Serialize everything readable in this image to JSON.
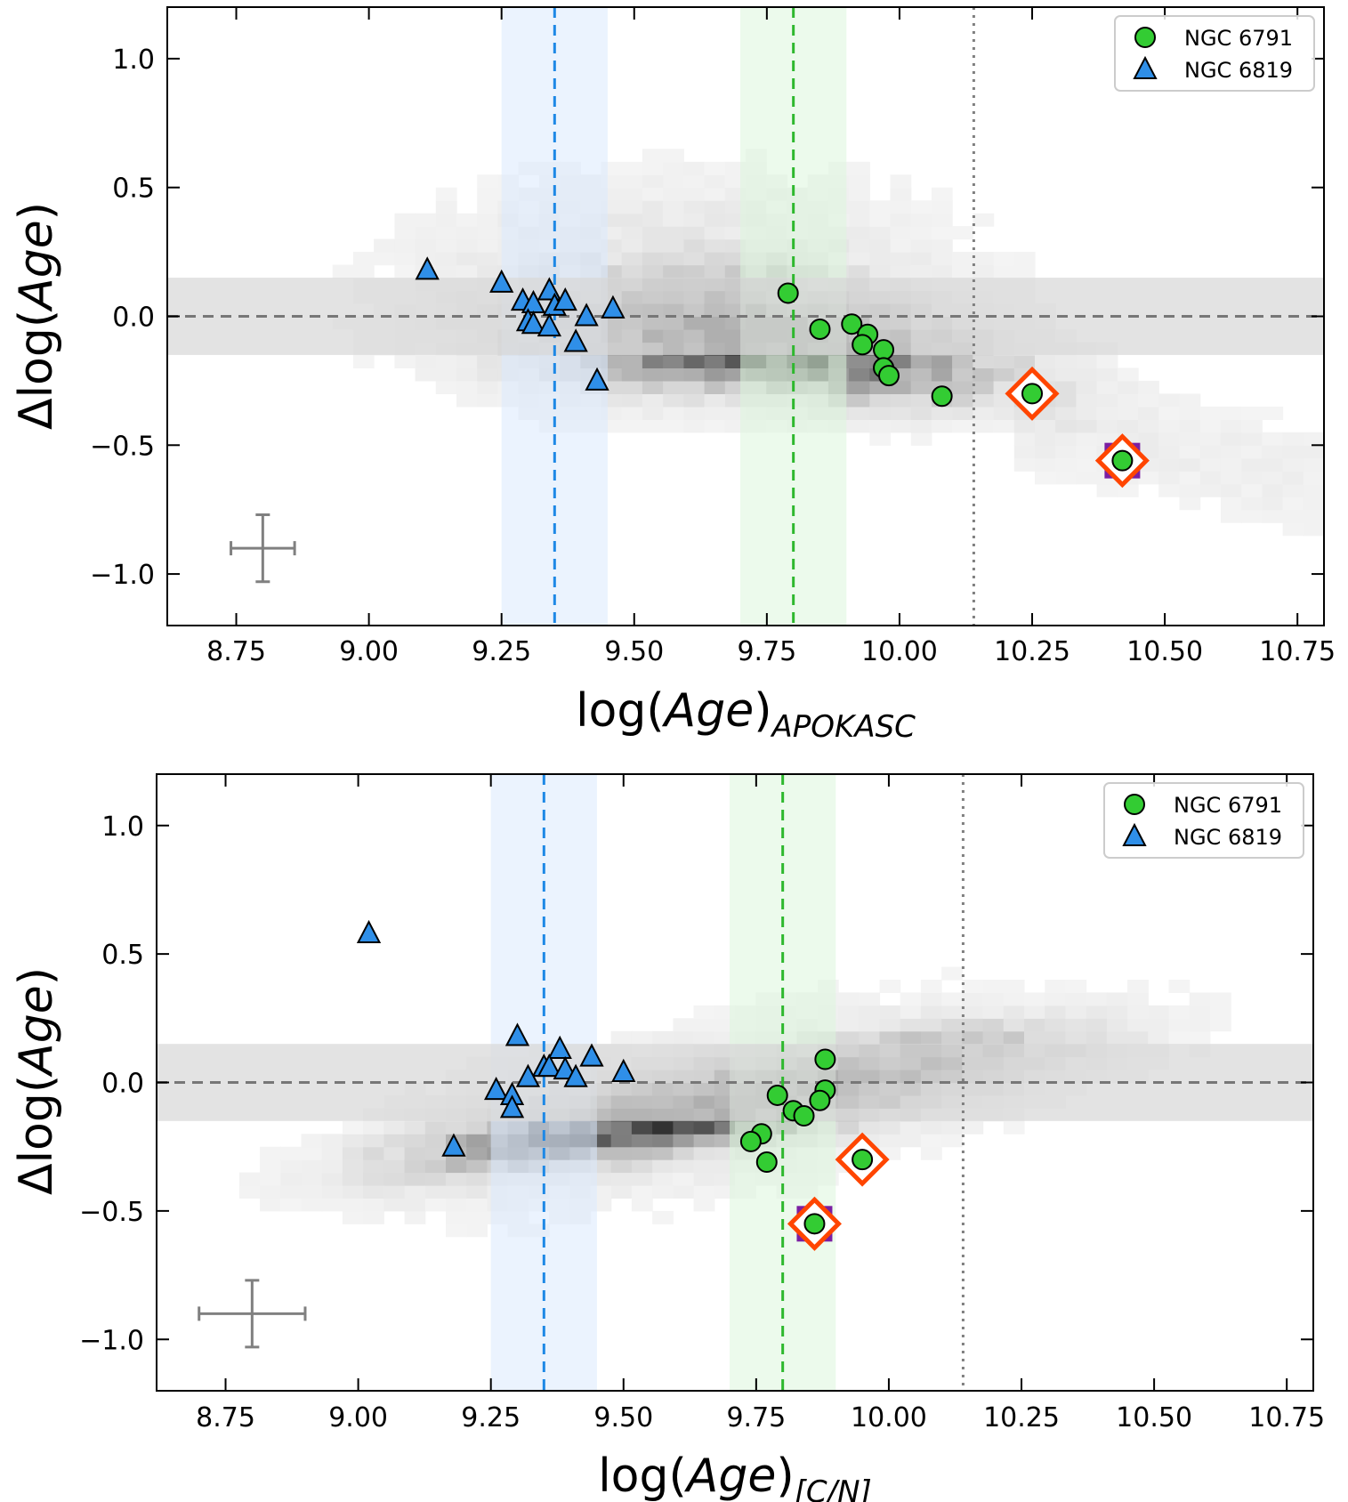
{
  "chart_data": [
    {
      "type": "scatter",
      "panel": "top",
      "xlabel": "log(Age)",
      "xlabel_sub": "APOKASC",
      "ylabel_prefix": "Δlog(",
      "ylabel_var": "Age",
      "ylabel_suffix": ")",
      "xlim": [
        8.62,
        10.8
      ],
      "ylim": [
        -1.2,
        1.2
      ],
      "xticks": [
        8.75,
        9.0,
        9.25,
        9.5,
        9.75,
        10.0,
        10.25,
        10.5,
        10.75
      ],
      "xtick_labels": [
        "8.75",
        "9.00",
        "9.25",
        "9.50",
        "9.75",
        "10.00",
        "10.25",
        "10.50",
        "10.75"
      ],
      "yticks": [
        -1.0,
        -0.5,
        0.0,
        0.5,
        1.0
      ],
      "ytick_labels": [
        "−1.0",
        "−0.5",
        "0.0",
        "0.5",
        "1.0"
      ],
      "legend_position": "top-right",
      "bands": [
        {
          "axis": "x",
          "range": [
            9.25,
            9.45
          ],
          "color": "#dbeafe"
        },
        {
          "axis": "x",
          "range": [
            9.7,
            9.9
          ],
          "color": "#dcf5dc"
        },
        {
          "axis": "y",
          "range": [
            -0.15,
            0.15
          ],
          "color": "#d9d9d9"
        }
      ],
      "reference_lines": [
        {
          "axis": "y",
          "value": 0.0,
          "style": "dashed",
          "color": "#777777"
        },
        {
          "axis": "x",
          "value": 9.35,
          "style": "dashed",
          "color": "#1e88e5"
        },
        {
          "axis": "x",
          "value": 9.8,
          "style": "dashed",
          "color": "#2eb82e"
        },
        {
          "axis": "x",
          "value": 10.14,
          "style": "dotted",
          "color": "#808080"
        }
      ],
      "error_bar": {
        "x": 8.8,
        "y": -0.9,
        "xerr": 0.06,
        "yerr": 0.13
      },
      "series": [
        {
          "name": "NGC 6791",
          "marker": "circle",
          "color": "#33cc33",
          "points": [
            [
              9.79,
              0.09
            ],
            [
              9.85,
              -0.05
            ],
            [
              9.91,
              -0.03
            ],
            [
              9.94,
              -0.07
            ],
            [
              9.93,
              -0.11
            ],
            [
              9.97,
              -0.13
            ],
            [
              9.97,
              -0.2
            ],
            [
              9.98,
              -0.23
            ],
            [
              10.08,
              -0.31
            ],
            [
              10.25,
              -0.3
            ],
            [
              10.42,
              -0.56
            ]
          ]
        },
        {
          "name": "NGC 6819",
          "marker": "triangle",
          "color": "#2f8fe8",
          "points": [
            [
              9.11,
              0.18
            ],
            [
              9.25,
              0.13
            ],
            [
              9.29,
              0.06
            ],
            [
              9.31,
              0.05
            ],
            [
              9.34,
              0.1
            ],
            [
              9.35,
              0.04
            ],
            [
              9.37,
              0.06
            ],
            [
              9.3,
              -0.02
            ],
            [
              9.31,
              -0.03
            ],
            [
              9.34,
              -0.04
            ],
            [
              9.41,
              0.0
            ],
            [
              9.39,
              -0.1
            ],
            [
              9.46,
              0.03
            ],
            [
              9.43,
              -0.25
            ]
          ]
        }
      ],
      "highlights": [
        {
          "x": 10.25,
          "y": -0.3,
          "marker": "diamond",
          "color": "#ff4500"
        },
        {
          "x": 10.42,
          "y": -0.56,
          "marker": "diamond",
          "color": "#ff4500"
        },
        {
          "x": 10.42,
          "y": -0.56,
          "marker": "square",
          "color": "#7b1fa2"
        }
      ]
    },
    {
      "type": "scatter",
      "panel": "bottom",
      "xlabel": "log(Age)",
      "xlabel_sub": "[C/N]",
      "ylabel_prefix": "Δlog(",
      "ylabel_var": "Age",
      "ylabel_suffix": ")",
      "xlim": [
        8.62,
        10.8
      ],
      "ylim": [
        -1.2,
        1.2
      ],
      "xticks": [
        8.75,
        9.0,
        9.25,
        9.5,
        9.75,
        10.0,
        10.25,
        10.5,
        10.75
      ],
      "xtick_labels": [
        "8.75",
        "9.00",
        "9.25",
        "9.50",
        "9.75",
        "10.00",
        "10.25",
        "10.50",
        "10.75"
      ],
      "yticks": [
        -1.0,
        -0.5,
        0.0,
        0.5,
        1.0
      ],
      "ytick_labels": [
        "−1.0",
        "−0.5",
        "0.0",
        "0.5",
        "1.0"
      ],
      "legend_position": "top-right",
      "bands": [
        {
          "axis": "x",
          "range": [
            9.25,
            9.45
          ],
          "color": "#dbeafe"
        },
        {
          "axis": "x",
          "range": [
            9.7,
            9.9
          ],
          "color": "#dcf5dc"
        },
        {
          "axis": "y",
          "range": [
            -0.15,
            0.15
          ],
          "color": "#d9d9d9"
        }
      ],
      "reference_lines": [
        {
          "axis": "y",
          "value": 0.0,
          "style": "dashed",
          "color": "#777777"
        },
        {
          "axis": "x",
          "value": 9.35,
          "style": "dashed",
          "color": "#1e88e5"
        },
        {
          "axis": "x",
          "value": 9.8,
          "style": "dashed",
          "color": "#2eb82e"
        },
        {
          "axis": "x",
          "value": 10.14,
          "style": "dotted",
          "color": "#808080"
        }
      ],
      "error_bar": {
        "x": 8.8,
        "y": -0.9,
        "xerr": 0.1,
        "yerr": 0.13
      },
      "series": [
        {
          "name": "NGC 6791",
          "marker": "circle",
          "color": "#33cc33",
          "points": [
            [
              9.88,
              0.09
            ],
            [
              9.79,
              -0.05
            ],
            [
              9.88,
              -0.03
            ],
            [
              9.87,
              -0.07
            ],
            [
              9.82,
              -0.11
            ],
            [
              9.84,
              -0.13
            ],
            [
              9.76,
              -0.2
            ],
            [
              9.74,
              -0.23
            ],
            [
              9.77,
              -0.31
            ],
            [
              9.95,
              -0.3
            ],
            [
              9.86,
              -0.55
            ]
          ]
        },
        {
          "name": "NGC 6819",
          "marker": "triangle",
          "color": "#2f8fe8",
          "points": [
            [
              9.02,
              0.58
            ],
            [
              9.3,
              0.18
            ],
            [
              9.38,
              0.13
            ],
            [
              9.44,
              0.1
            ],
            [
              9.35,
              0.06
            ],
            [
              9.36,
              0.06
            ],
            [
              9.39,
              0.05
            ],
            [
              9.41,
              0.02
            ],
            [
              9.5,
              0.04
            ],
            [
              9.32,
              0.02
            ],
            [
              9.26,
              -0.03
            ],
            [
              9.29,
              -0.05
            ],
            [
              9.29,
              -0.1
            ],
            [
              9.18,
              -0.25
            ]
          ]
        }
      ],
      "highlights": [
        {
          "x": 9.95,
          "y": -0.3,
          "marker": "diamond",
          "color": "#ff4500"
        },
        {
          "x": 9.86,
          "y": -0.55,
          "marker": "diamond",
          "color": "#ff4500"
        },
        {
          "x": 9.86,
          "y": -0.55,
          "marker": "square",
          "color": "#7b1fa2"
        }
      ]
    }
  ]
}
